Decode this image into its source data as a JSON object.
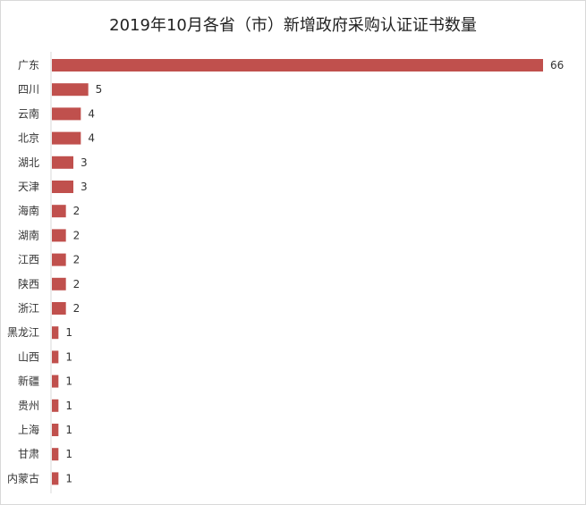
{
  "chart_data": {
    "type": "bar",
    "orientation": "horizontal",
    "title": "2019年10月各省（市）新增政府采购认证证书数量",
    "categories": [
      "广东",
      "四川",
      "云南",
      "北京",
      "湖北",
      "天津",
      "海南",
      "湖南",
      "江西",
      "陕西",
      "浙江",
      "黑龙江",
      "山西",
      "新疆",
      "贵州",
      "上海",
      "甘肃",
      "内蒙古"
    ],
    "values": [
      66,
      5,
      4,
      4,
      3,
      3,
      2,
      2,
      2,
      2,
      2,
      1,
      1,
      1,
      1,
      1,
      1,
      1
    ],
    "xlim": [
      0,
      66
    ],
    "bar_color": "#c0504d",
    "axis_color": "#d9d9d9",
    "grid": false,
    "legend": "none"
  }
}
